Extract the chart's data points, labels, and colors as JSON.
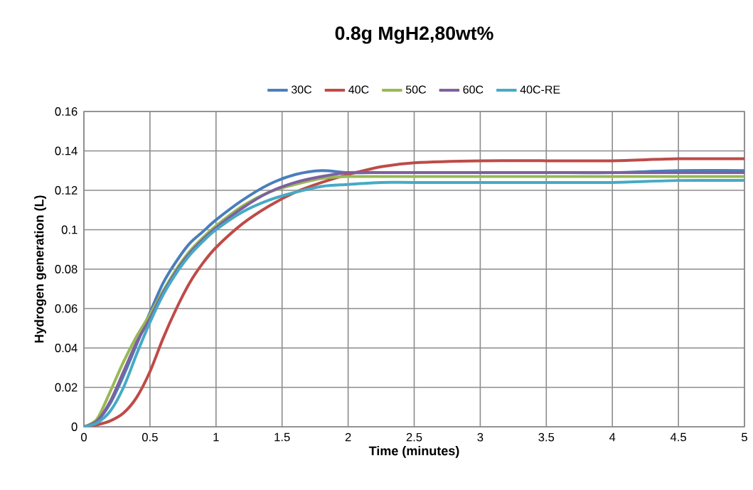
{
  "chart_data": {
    "type": "line",
    "title": "0.8g MgH2,80wt%",
    "xlabel": "Time (minutes)",
    "ylabel": "Hydrogen generation (L)",
    "x": [
      0,
      0.1,
      0.2,
      0.3,
      0.4,
      0.5,
      0.6,
      0.7,
      0.8,
      0.9,
      1.0,
      1.2,
      1.4,
      1.6,
      1.8,
      2.0,
      2.25,
      2.5,
      3,
      3.5,
      4,
      4.5,
      5
    ],
    "series": [
      {
        "name": "30C",
        "color": "#4a7ebb",
        "values": [
          0,
          0.003,
          0.012,
          0.026,
          0.042,
          0.058,
          0.073,
          0.084,
          0.093,
          0.099,
          0.105,
          0.115,
          0.123,
          0.128,
          0.13,
          0.129,
          0.129,
          0.129,
          0.129,
          0.129,
          0.129,
          0.13,
          0.13
        ]
      },
      {
        "name": "40C",
        "color": "#be4b48",
        "values": [
          0,
          0.001,
          0.003,
          0.007,
          0.015,
          0.028,
          0.045,
          0.06,
          0.073,
          0.083,
          0.091,
          0.103,
          0.112,
          0.119,
          0.124,
          0.128,
          0.132,
          0.134,
          0.135,
          0.135,
          0.135,
          0.136,
          0.136
        ]
      },
      {
        "name": "50C",
        "color": "#98b954",
        "values": [
          0,
          0.004,
          0.018,
          0.033,
          0.046,
          0.057,
          0.069,
          0.08,
          0.089,
          0.096,
          0.102,
          0.112,
          0.119,
          0.123,
          0.126,
          0.127,
          0.127,
          0.127,
          0.127,
          0.127,
          0.127,
          0.127,
          0.127
        ]
      },
      {
        "name": "60C",
        "color": "#7d60a0",
        "values": [
          0,
          0.003,
          0.013,
          0.028,
          0.043,
          0.055,
          0.068,
          0.079,
          0.088,
          0.095,
          0.101,
          0.111,
          0.119,
          0.124,
          0.127,
          0.129,
          0.129,
          0.129,
          0.129,
          0.129,
          0.129,
          0.129,
          0.129
        ]
      },
      {
        "name": "40C-RE",
        "color": "#46aac5",
        "values": [
          0,
          0.002,
          0.008,
          0.02,
          0.037,
          0.053,
          0.067,
          0.078,
          0.087,
          0.094,
          0.1,
          0.109,
          0.115,
          0.119,
          0.122,
          0.123,
          0.124,
          0.124,
          0.124,
          0.124,
          0.124,
          0.125,
          0.125
        ]
      }
    ],
    "xlim": [
      0,
      5
    ],
    "ylim": [
      0,
      0.16
    ],
    "xticks": [
      0,
      0.5,
      1,
      1.5,
      2,
      2.5,
      3,
      3.5,
      4,
      4.5,
      5
    ],
    "yticks": [
      0,
      0.02,
      0.04,
      0.06,
      0.08,
      0.1,
      0.12,
      0.14,
      0.16
    ],
    "grid": true,
    "legend": "top",
    "marker": "none",
    "line_style": "solid"
  }
}
